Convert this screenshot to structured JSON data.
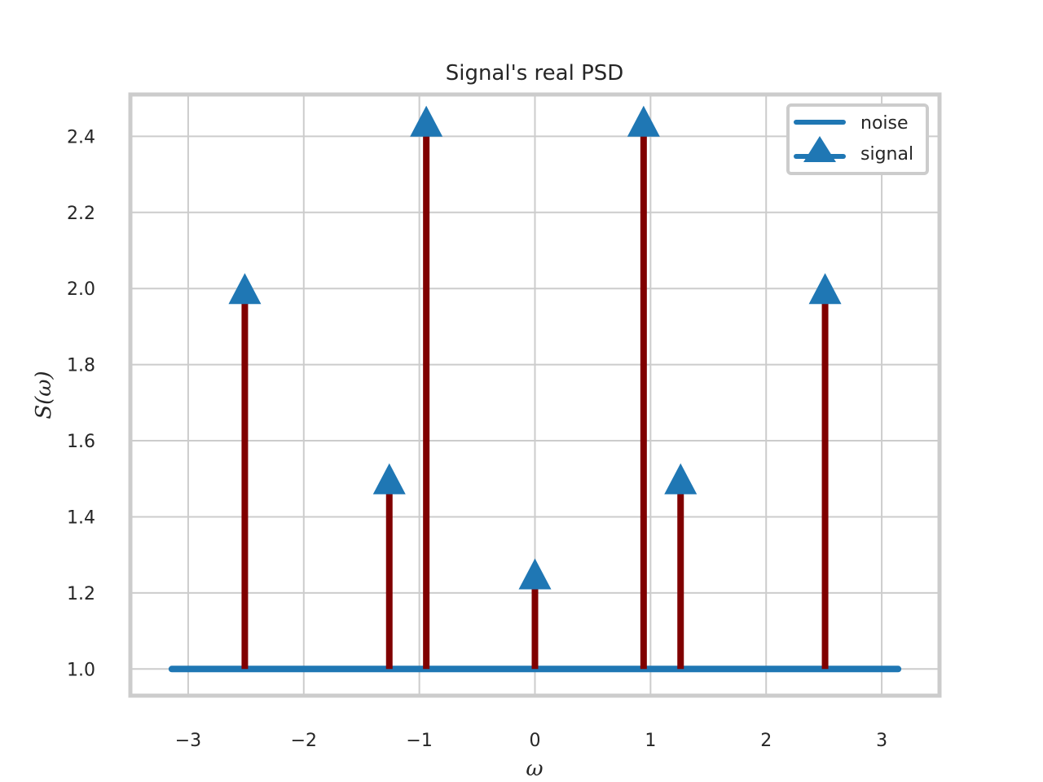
{
  "chart_data": {
    "type": "stem",
    "title": "Signal's real PSD",
    "xlabel": "ω",
    "ylabel": "S(ω)",
    "xlim": [
      -3.5,
      3.5
    ],
    "ylim": [
      0.93,
      2.51
    ],
    "xticks": [
      -3,
      -2,
      -1,
      0,
      1,
      2,
      3
    ],
    "xtick_labels": [
      "−3",
      "−2",
      "−1",
      "0",
      "1",
      "2",
      "3"
    ],
    "yticks": [
      1.0,
      1.2,
      1.4,
      1.6,
      1.8,
      2.0,
      2.2,
      2.4
    ],
    "ytick_labels": [
      "1.0",
      "1.2",
      "1.4",
      "1.6",
      "1.8",
      "2.0",
      "2.2",
      "2.4"
    ],
    "grid": true,
    "legend_position": "top-right",
    "series": [
      {
        "name": "noise",
        "kind": "line",
        "color": "#1f77b4",
        "x": [
          -3.1416,
          3.1416
        ],
        "y": [
          1.0,
          1.0
        ]
      },
      {
        "name": "signal",
        "kind": "stem",
        "marker": "triangle-up",
        "marker_color": "#1f77b4",
        "stem_color": "#800000",
        "baseline": 1.0,
        "x": [
          -2.51,
          -1.26,
          -0.94,
          0.0,
          0.94,
          1.26,
          2.51
        ],
        "y": [
          2.0,
          1.5,
          2.44,
          1.25,
          2.44,
          1.5,
          2.0
        ]
      }
    ]
  }
}
